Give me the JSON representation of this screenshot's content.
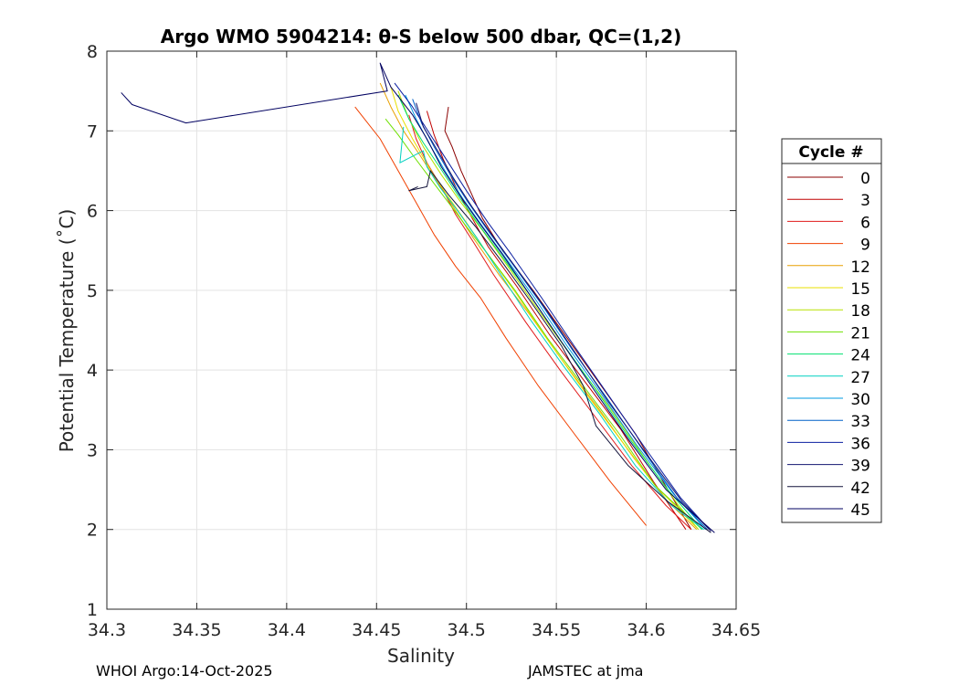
{
  "chart_data": {
    "type": "line",
    "title": "Argo WMO 5904214: θ-S below 500 dbar,  QC=(1,2)",
    "xlabel": "Salinity",
    "ylabel": "Potential Temperature (˚C)",
    "xlim": [
      34.3,
      34.65
    ],
    "ylim": [
      1,
      8
    ],
    "xticks": [
      "34.3",
      "34.35",
      "34.4",
      "34.45",
      "34.5",
      "34.55",
      "34.6",
      "34.65"
    ],
    "xtick_values": [
      34.3,
      34.35,
      34.4,
      34.45,
      34.5,
      34.55,
      34.6,
      34.65
    ],
    "yticks": [
      "1",
      "2",
      "3",
      "4",
      "5",
      "6",
      "7",
      "8"
    ],
    "ytick_values": [
      1,
      2,
      3,
      4,
      5,
      6,
      7,
      8
    ],
    "grid": true,
    "legend_title": "Cycle #",
    "legend_position": "right",
    "series": [
      {
        "name": "0",
        "color": "#8b0000",
        "x": [
          34.49,
          34.488,
          34.492,
          34.497,
          34.503,
          34.509,
          34.52,
          34.537,
          34.556,
          34.575,
          34.594,
          34.612,
          34.625
        ],
        "y": [
          7.3,
          7.0,
          6.8,
          6.5,
          6.2,
          5.9,
          5.5,
          5.0,
          4.4,
          3.8,
          3.2,
          2.5,
          2.0
        ]
      },
      {
        "name": "3",
        "color": "#c00000",
        "x": [
          34.478,
          34.482,
          34.487,
          34.494,
          34.502,
          34.512,
          34.528,
          34.546,
          34.566,
          34.586,
          34.604,
          34.622
        ],
        "y": [
          7.25,
          6.95,
          6.65,
          6.3,
          5.95,
          5.55,
          5.05,
          4.45,
          3.85,
          3.25,
          2.6,
          2.0
        ]
      },
      {
        "name": "6",
        "color": "#e01a1a",
        "x": [
          34.468,
          34.472,
          34.478,
          34.486,
          34.494,
          34.504,
          34.515,
          34.533,
          34.552,
          34.572,
          34.592,
          34.611,
          34.625
        ],
        "y": [
          7.2,
          6.9,
          6.6,
          6.3,
          5.95,
          5.6,
          5.2,
          4.6,
          4.0,
          3.4,
          2.8,
          2.3,
          2.0
        ]
      },
      {
        "name": "9",
        "color": "#f04000",
        "x": [
          34.438,
          34.452,
          34.462,
          34.472,
          34.482,
          34.494,
          34.508,
          34.522,
          34.54,
          34.56,
          34.58,
          34.6
        ],
        "y": [
          7.3,
          6.9,
          6.5,
          6.1,
          5.7,
          5.3,
          4.9,
          4.4,
          3.8,
          3.2,
          2.6,
          2.05
        ]
      },
      {
        "name": "12",
        "color": "#e8a000",
        "x": [
          34.452,
          34.458,
          34.465,
          34.474,
          34.484,
          34.494,
          34.504,
          34.518,
          34.535,
          34.554,
          34.574,
          34.593,
          34.612,
          34.628
        ],
        "y": [
          7.6,
          7.3,
          7.0,
          6.7,
          6.35,
          6.0,
          5.65,
          5.2,
          4.7,
          4.1,
          3.5,
          2.9,
          2.35,
          2.0
        ]
      },
      {
        "name": "15",
        "color": "#e8e000",
        "x": [
          34.458,
          34.462,
          34.47,
          34.479,
          34.489,
          34.5,
          34.512,
          34.528,
          34.546,
          34.565,
          34.585,
          34.605,
          34.629
        ],
        "y": [
          7.55,
          7.25,
          6.9,
          6.55,
          6.2,
          5.85,
          5.45,
          4.95,
          4.35,
          3.75,
          3.15,
          2.55,
          2.0
        ]
      },
      {
        "name": "18",
        "color": "#b8e000",
        "x": [
          34.462,
          34.468,
          34.476,
          34.486,
          34.497,
          34.509,
          34.523,
          34.54,
          34.559,
          34.579,
          34.599,
          34.618,
          34.629
        ],
        "y": [
          7.5,
          7.15,
          6.8,
          6.45,
          6.1,
          5.75,
          5.3,
          4.75,
          4.15,
          3.55,
          2.9,
          2.3,
          2.0
        ]
      },
      {
        "name": "21",
        "color": "#6ee000",
        "x": [
          34.455,
          34.462,
          34.47,
          34.48,
          34.49,
          34.5,
          34.512,
          34.527,
          34.545,
          34.565,
          34.585,
          34.605,
          34.631
        ],
        "y": [
          7.15,
          6.95,
          6.7,
          6.4,
          6.1,
          5.8,
          5.45,
          5.0,
          4.4,
          3.8,
          3.2,
          2.55,
          2.0
        ]
      },
      {
        "name": "24",
        "color": "#00e070",
        "x": [
          34.462,
          34.468,
          34.476,
          34.485,
          34.495,
          34.506,
          34.519,
          34.535,
          34.553,
          34.572,
          34.592,
          34.612,
          34.631
        ],
        "y": [
          7.45,
          7.15,
          6.85,
          6.55,
          6.2,
          5.85,
          5.45,
          4.95,
          4.35,
          3.75,
          3.1,
          2.5,
          2.0
        ]
      },
      {
        "name": "27",
        "color": "#00d0c0",
        "x": [
          34.465,
          34.463,
          34.476,
          34.478,
          34.485,
          34.495,
          34.506,
          34.519,
          34.535,
          34.554,
          34.574,
          34.594,
          34.614,
          34.632
        ],
        "y": [
          7.05,
          6.6,
          6.75,
          6.55,
          6.3,
          6.0,
          5.65,
          5.2,
          4.65,
          4.05,
          3.45,
          2.8,
          2.3,
          2.0
        ]
      },
      {
        "name": "30",
        "color": "#009ae0",
        "x": [
          34.466,
          34.472,
          34.479,
          34.488,
          34.498,
          34.509,
          34.522,
          34.538,
          34.556,
          34.575,
          34.595,
          34.615,
          34.633
        ],
        "y": [
          7.45,
          7.15,
          6.85,
          6.5,
          6.15,
          5.8,
          5.4,
          4.9,
          4.3,
          3.7,
          3.05,
          2.45,
          2.0
        ]
      },
      {
        "name": "33",
        "color": "#0060c8",
        "x": [
          34.47,
          34.475,
          34.482,
          34.491,
          34.501,
          34.512,
          34.525,
          34.541,
          34.559,
          34.578,
          34.598,
          34.617,
          34.634
        ],
        "y": [
          7.4,
          7.1,
          6.8,
          6.45,
          6.1,
          5.75,
          5.35,
          4.85,
          4.25,
          3.65,
          3.0,
          2.4,
          2.0
        ]
      },
      {
        "name": "36",
        "color": "#0a1ea0",
        "x": [
          34.46,
          34.47,
          34.48,
          34.49,
          34.5,
          34.512,
          34.525,
          34.542,
          34.56,
          34.58,
          34.6,
          34.619,
          34.635
        ],
        "y": [
          7.6,
          7.3,
          6.95,
          6.6,
          6.25,
          5.85,
          5.45,
          4.9,
          4.3,
          3.65,
          3.0,
          2.4,
          2.0
        ]
      },
      {
        "name": "39",
        "color": "#121470",
        "x": [
          34.472,
          34.476,
          34.484,
          34.493,
          34.503,
          34.514,
          34.527,
          34.543,
          34.561,
          34.579,
          34.6,
          34.62,
          34.636
        ],
        "y": [
          7.35,
          7.05,
          6.75,
          6.4,
          6.05,
          5.7,
          5.3,
          4.8,
          4.2,
          3.6,
          2.95,
          2.35,
          1.98
        ]
      },
      {
        "name": "42",
        "color": "#14143c",
        "x": [
          34.473,
          34.468,
          34.478,
          34.48,
          34.49,
          34.505,
          34.52,
          34.536,
          34.553,
          34.565,
          34.572,
          34.59,
          34.612,
          34.636
        ],
        "y": [
          6.3,
          6.25,
          6.3,
          6.5,
          6.2,
          5.8,
          5.35,
          4.85,
          4.3,
          3.8,
          3.3,
          2.8,
          2.35,
          1.96
        ]
      },
      {
        "name": "45",
        "color": "#000060",
        "x": [
          34.308,
          34.314,
          34.344,
          34.456,
          34.452,
          34.458,
          34.47,
          34.478,
          34.486,
          34.496,
          34.507,
          34.52,
          34.535,
          34.553,
          34.571,
          34.591,
          34.611,
          34.638
        ],
        "y": [
          7.48,
          7.33,
          7.1,
          7.5,
          7.85,
          7.55,
          7.2,
          6.9,
          6.55,
          6.2,
          5.85,
          5.45,
          4.95,
          4.35,
          3.75,
          3.1,
          2.5,
          1.96
        ]
      }
    ]
  },
  "footer": {
    "left": "WHOI Argo:14-Oct-2025",
    "right": "JAMSTEC at jma"
  }
}
